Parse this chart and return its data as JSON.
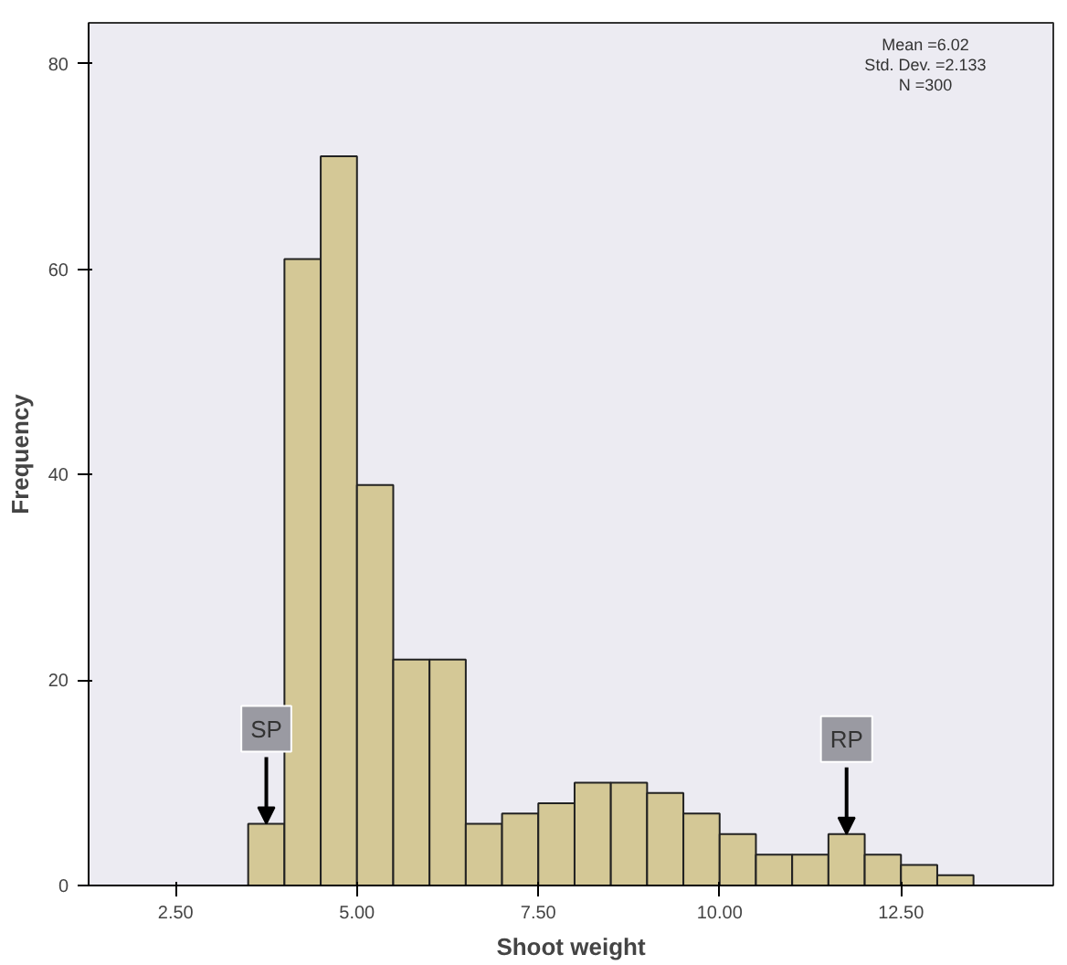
{
  "chart_data": {
    "type": "histogram",
    "xlabel": "Shoot weight",
    "ylabel": "Frequency",
    "bins": [
      3.5,
      4.0,
      4.5,
      5.0,
      5.5,
      6.0,
      6.5,
      7.0,
      7.5,
      8.0,
      8.5,
      9.0,
      9.5,
      10.0,
      10.5,
      11.0,
      11.5,
      12.0,
      12.5,
      13.0,
      13.5
    ],
    "values": [
      6,
      61,
      71,
      39,
      22,
      22,
      6,
      7,
      8,
      10,
      10,
      9,
      7,
      5,
      3,
      3,
      5,
      3,
      2,
      1
    ],
    "color": "#d4c896",
    "xlim": [
      1.3,
      14.6
    ],
    "ylim": [
      0,
      84
    ],
    "xticks": [
      {
        "value": 2.5,
        "label": "2.50"
      },
      {
        "value": 5.0,
        "label": "5.00"
      },
      {
        "value": 7.5,
        "label": "7.50"
      },
      {
        "value": 10.0,
        "label": "10.00"
      },
      {
        "value": 12.5,
        "label": "12.50"
      }
    ],
    "yticks": [
      0,
      20,
      40,
      60,
      80
    ],
    "grid": false,
    "annotations": [
      "Mean =6.02",
      "Std. Dev. =2.133",
      "N =300",
      {
        "text": "SP",
        "x": 3.75,
        "y": 6
      },
      {
        "text": "RP",
        "x": 11.75,
        "y": 5
      }
    ]
  }
}
